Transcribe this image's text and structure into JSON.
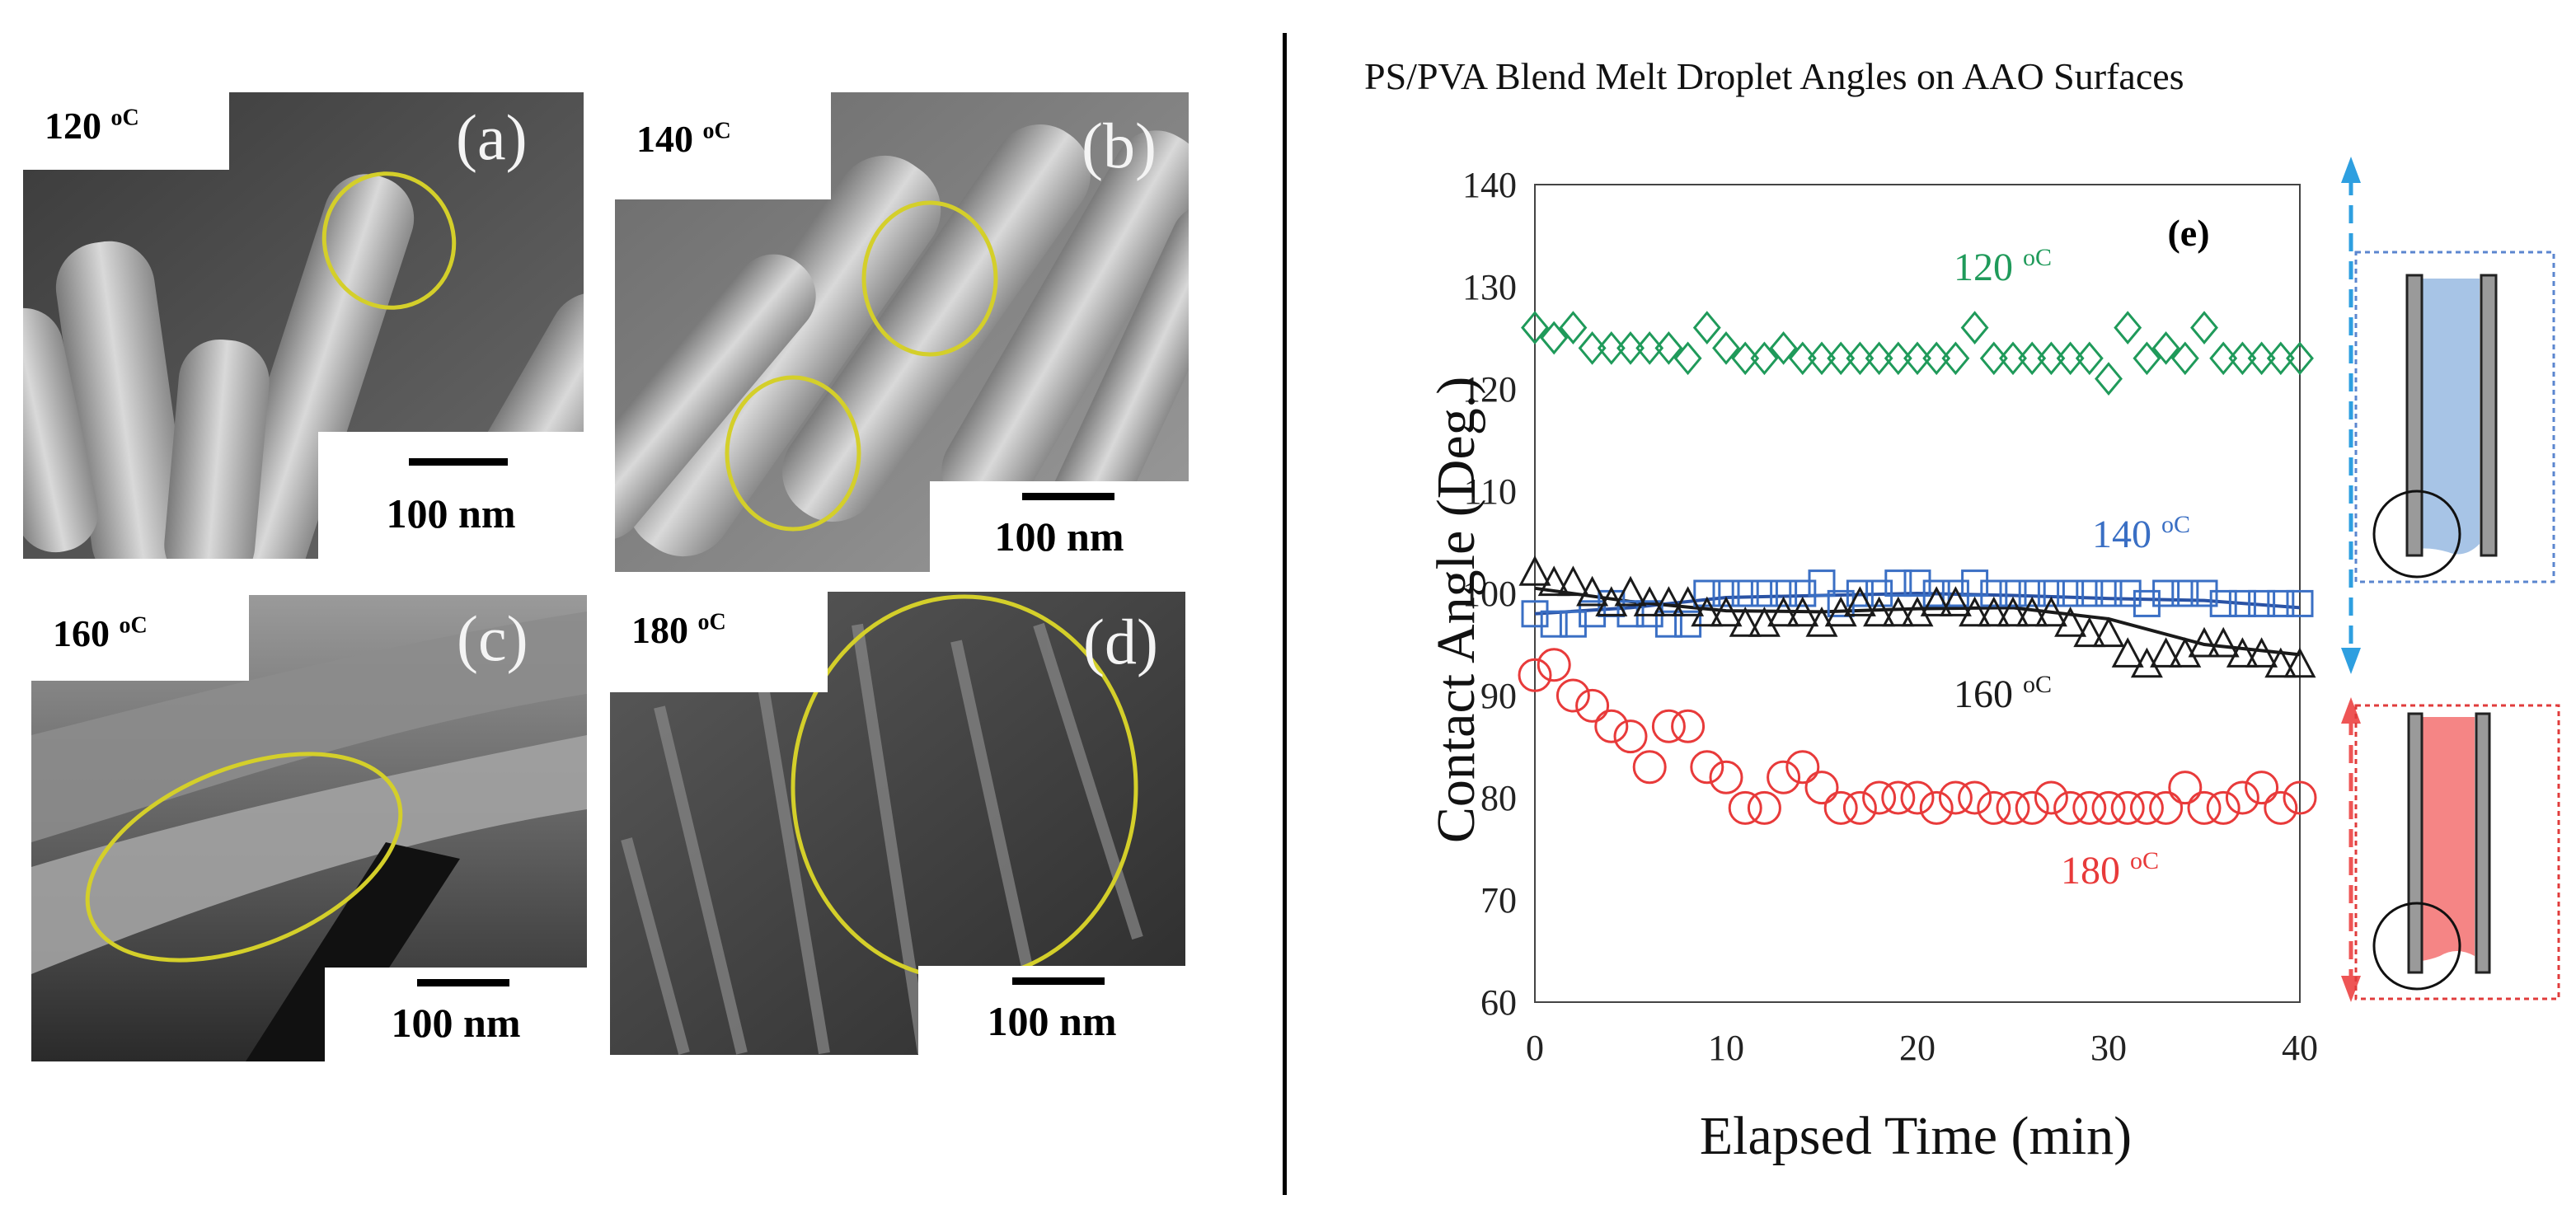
{
  "sem_panels": [
    {
      "temperature": "120",
      "unit": "oC",
      "letter": "(a)",
      "scale": "100 nm"
    },
    {
      "temperature": "140",
      "unit": "oC",
      "letter": "(b)",
      "scale": "100 nm"
    },
    {
      "temperature": "160",
      "unit": "oC",
      "letter": "(c)",
      "scale": "100 nm"
    },
    {
      "temperature": "180",
      "unit": "oC",
      "letter": "(d)",
      "scale": "100 nm"
    }
  ],
  "chart_data": {
    "type": "scatter",
    "title": "PS/PVA Blend Melt Droplet Angles on AAO  Surfaces",
    "panel_label": "(e)",
    "xlabel": "Elapsed Time (min)",
    "ylabel": "Contact Angle  (Deg.)",
    "xlim": [
      0,
      40
    ],
    "ylim": [
      60,
      140
    ],
    "xticks": [
      0,
      10,
      20,
      30,
      40
    ],
    "yticks": [
      60,
      70,
      80,
      90,
      100,
      110,
      120,
      130,
      140
    ],
    "series": [
      {
        "name": "120 oC",
        "label_temp": "120",
        "label_unit": "oC",
        "marker": "diamond",
        "color": "#1f9a5a",
        "x": [
          0,
          1,
          2,
          3,
          4,
          5,
          6,
          7,
          8,
          9,
          10,
          11,
          12,
          13,
          14,
          15,
          16,
          17,
          18,
          19,
          20,
          21,
          22,
          23,
          24,
          25,
          26,
          27,
          28,
          29,
          30,
          31,
          32,
          33,
          34,
          35,
          36,
          37,
          38,
          39,
          40
        ],
        "y": [
          126,
          125,
          126,
          124,
          124,
          124,
          124,
          124,
          123,
          126,
          124,
          123,
          123,
          124,
          123,
          123,
          123,
          123,
          123,
          123,
          123,
          123,
          123,
          126,
          123,
          123,
          123,
          123,
          123,
          123,
          121,
          126,
          123,
          124,
          123,
          126,
          123,
          123,
          123,
          123,
          123
        ]
      },
      {
        "name": "140 oC",
        "label_temp": "140",
        "label_unit": "oC",
        "marker": "square",
        "color": "#3a6fc4",
        "x": [
          0,
          1,
          2,
          3,
          4,
          5,
          6,
          7,
          8,
          9,
          10,
          11,
          12,
          13,
          14,
          15,
          16,
          17,
          18,
          19,
          20,
          21,
          22,
          23,
          24,
          25,
          26,
          27,
          28,
          29,
          30,
          31,
          32,
          33,
          34,
          35,
          36,
          37,
          38,
          39,
          40
        ],
        "y": [
          98,
          97,
          97,
          98,
          99,
          98,
          98,
          97,
          97,
          100,
          100,
          100,
          100,
          100,
          100,
          101,
          99,
          100,
          100,
          101,
          101,
          100,
          100,
          101,
          100,
          100,
          100,
          100,
          100,
          100,
          100,
          100,
          99,
          100,
          100,
          100,
          99,
          99,
          99,
          99,
          99
        ]
      },
      {
        "name": "160 oC",
        "label_temp": "160",
        "label_unit": "oC",
        "marker": "triangle",
        "color": "#1a1a1a",
        "x": [
          0,
          1,
          2,
          3,
          4,
          5,
          6,
          7,
          8,
          9,
          10,
          11,
          12,
          13,
          14,
          15,
          16,
          17,
          18,
          19,
          20,
          21,
          22,
          23,
          24,
          25,
          26,
          27,
          28,
          29,
          30,
          31,
          32,
          33,
          34,
          35,
          36,
          37,
          38,
          39,
          40
        ],
        "y": [
          102,
          101,
          101,
          100,
          99,
          100,
          99,
          99,
          99,
          98,
          98,
          97,
          97,
          98,
          98,
          97,
          98,
          99,
          98,
          98,
          98,
          99,
          99,
          98,
          98,
          98,
          98,
          98,
          97,
          96,
          96,
          94,
          93,
          94,
          94,
          95,
          95,
          94,
          94,
          93,
          93
        ]
      },
      {
        "name": "180 oC",
        "label_temp": "180",
        "label_unit": "oC",
        "marker": "circle",
        "color": "#e83a3a",
        "x": [
          0,
          1,
          2,
          3,
          4,
          5,
          6,
          7,
          8,
          9,
          10,
          11,
          12,
          13,
          14,
          15,
          16,
          17,
          18,
          19,
          20,
          21,
          22,
          23,
          24,
          25,
          26,
          27,
          28,
          29,
          30,
          31,
          32,
          33,
          34,
          35,
          36,
          37,
          38,
          39,
          40
        ],
        "y": [
          92,
          93,
          90,
          89,
          87,
          86,
          83,
          87,
          87,
          83,
          82,
          79,
          79,
          82,
          83,
          81,
          79,
          79,
          80,
          80,
          80,
          79,
          80,
          80,
          79,
          79,
          79,
          80,
          79,
          79,
          79,
          79,
          79,
          79,
          81,
          79,
          79,
          80,
          81,
          79,
          80
        ]
      }
    ],
    "trend_lines": [
      {
        "name": "140 oC trend",
        "color": "#2a52a4",
        "x": [
          0,
          5,
          10,
          15,
          20,
          25,
          30,
          35,
          40
        ],
        "y": [
          98,
          98.6,
          99.6,
          99.8,
          100,
          99.8,
          99.5,
          99.3,
          98.6
        ]
      },
      {
        "name": "160 oC trend",
        "color": "#1a1a1a",
        "x": [
          0,
          5,
          10,
          15,
          20,
          25,
          30,
          35,
          40
        ],
        "y": [
          100.5,
          99.2,
          98.3,
          98.2,
          98.5,
          98.6,
          97.5,
          95,
          94
        ]
      }
    ],
    "schematics": [
      {
        "name": "wetting",
        "fill_color": "#a7c4e6",
        "border_color": "#5b86cf",
        "arrow_color": "#2e9fe0"
      },
      {
        "name": "non-wetting",
        "fill_color": "#f58585",
        "border_color": "#e03c3c",
        "arrow_color": "#ee5555"
      }
    ]
  }
}
